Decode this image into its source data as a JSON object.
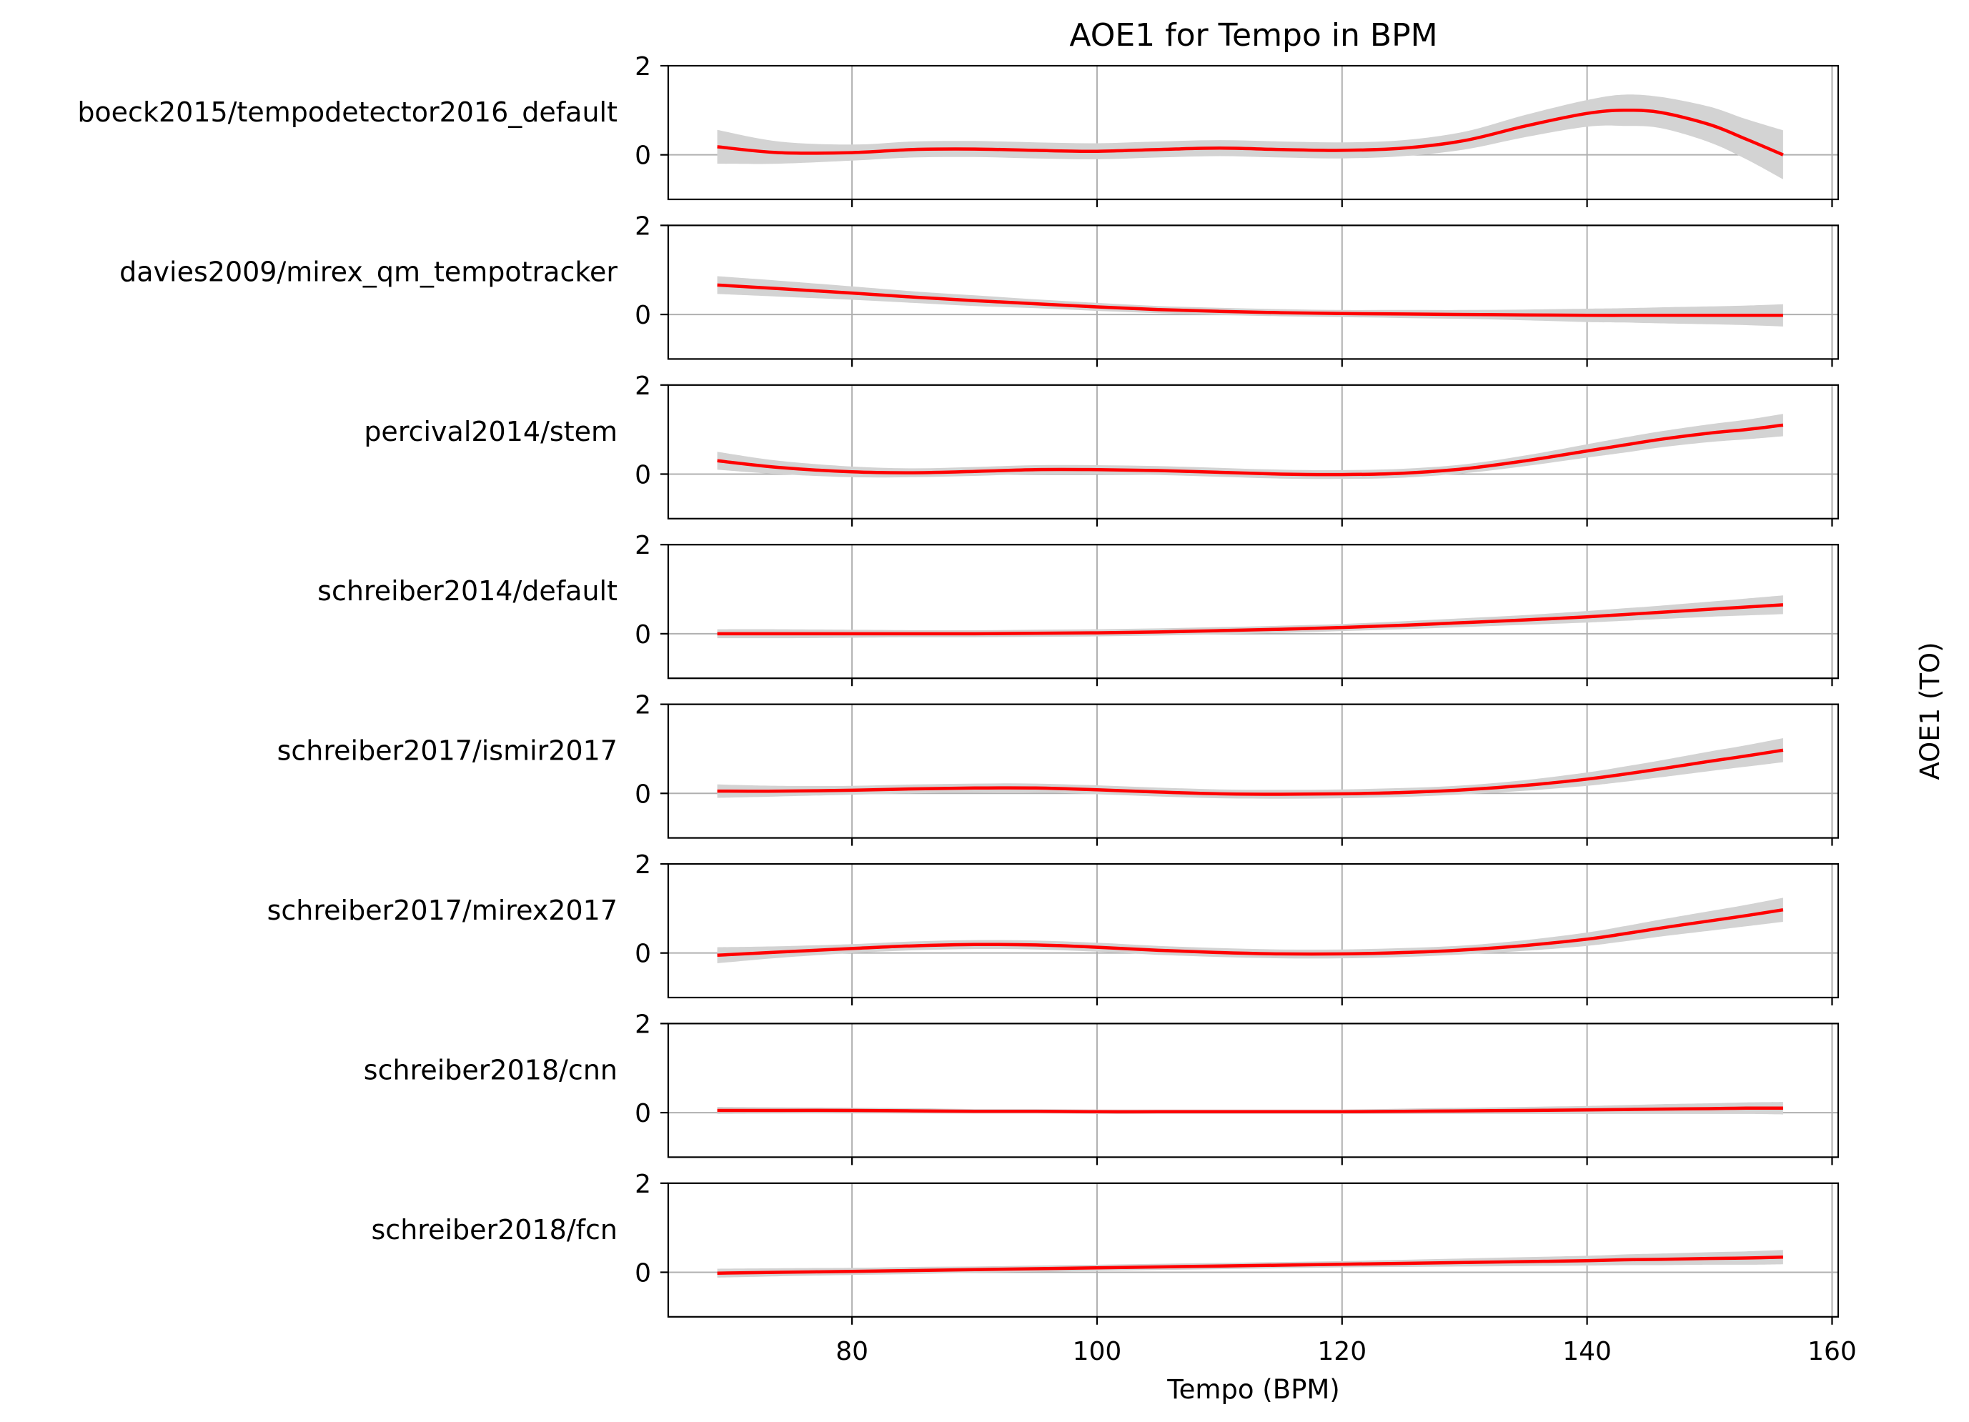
{
  "chart_data": {
    "type": "line",
    "title": "AOE1 for Tempo in BPM",
    "xlabel": "Tempo (BPM)",
    "ylabel": "AOE1 (TO)",
    "xlim": [
      65,
      160.5
    ],
    "ylim": [
      -1,
      2
    ],
    "xticks": [
      80,
      100,
      120,
      140,
      160
    ],
    "yticks": [
      0,
      2
    ],
    "grid": true,
    "line_color": "#ff0000",
    "band_color": "#d3d3d3",
    "grid_color": "#b0b0b0",
    "x": [
      69,
      74,
      80,
      85,
      90,
      95,
      100,
      105,
      110,
      115,
      120,
      125,
      130,
      135,
      140,
      143,
      146,
      150,
      153,
      156
    ],
    "series": [
      {
        "name": "boeck2015/tempodetector2016_default",
        "values": [
          0.18,
          0.05,
          0.05,
          0.12,
          0.13,
          0.1,
          0.08,
          0.12,
          0.15,
          0.12,
          0.1,
          0.15,
          0.32,
          0.65,
          0.93,
          1.0,
          0.95,
          0.68,
          0.35,
          0.0
        ],
        "band": [
          0.38,
          0.25,
          0.18,
          0.18,
          0.18,
          0.18,
          0.18,
          0.18,
          0.18,
          0.18,
          0.18,
          0.18,
          0.2,
          0.25,
          0.3,
          0.35,
          0.35,
          0.4,
          0.45,
          0.55
        ]
      },
      {
        "name": "davies2009/mirex_qm_tempotracker",
        "values": [
          0.66,
          0.58,
          0.48,
          0.39,
          0.31,
          0.24,
          0.17,
          0.11,
          0.07,
          0.04,
          0.02,
          0.01,
          0.0,
          -0.01,
          -0.02,
          -0.02,
          -0.02,
          -0.02,
          -0.02,
          -0.02
        ],
        "band": [
          0.2,
          0.18,
          0.15,
          0.13,
          0.12,
          0.1,
          0.09,
          0.08,
          0.08,
          0.08,
          0.08,
          0.09,
          0.1,
          0.12,
          0.15,
          0.16,
          0.18,
          0.2,
          0.22,
          0.25
        ]
      },
      {
        "name": "percival2014/stem",
        "values": [
          0.3,
          0.15,
          0.05,
          0.03,
          0.06,
          0.1,
          0.1,
          0.08,
          0.04,
          0.0,
          -0.01,
          0.02,
          0.12,
          0.3,
          0.52,
          0.65,
          0.78,
          0.92,
          1.0,
          1.1
        ],
        "band": [
          0.2,
          0.15,
          0.12,
          0.1,
          0.1,
          0.1,
          0.1,
          0.1,
          0.1,
          0.1,
          0.1,
          0.1,
          0.1,
          0.12,
          0.15,
          0.17,
          0.18,
          0.2,
          0.22,
          0.25
        ]
      },
      {
        "name": "schreiber2014/default",
        "values": [
          0.0,
          0.0,
          0.0,
          0.0,
          0.0,
          0.01,
          0.02,
          0.04,
          0.07,
          0.1,
          0.14,
          0.19,
          0.25,
          0.31,
          0.38,
          0.43,
          0.48,
          0.55,
          0.6,
          0.65
        ],
        "band": [
          0.1,
          0.1,
          0.09,
          0.08,
          0.08,
          0.08,
          0.08,
          0.08,
          0.08,
          0.08,
          0.08,
          0.09,
          0.1,
          0.11,
          0.13,
          0.14,
          0.15,
          0.17,
          0.19,
          0.21
        ]
      },
      {
        "name": "schreiber2017/ismir2017",
        "values": [
          0.05,
          0.05,
          0.07,
          0.1,
          0.12,
          0.12,
          0.08,
          0.03,
          -0.01,
          -0.02,
          -0.01,
          0.02,
          0.08,
          0.18,
          0.32,
          0.43,
          0.55,
          0.72,
          0.84,
          0.97
        ],
        "band": [
          0.15,
          0.12,
          0.1,
          0.1,
          0.1,
          0.1,
          0.1,
          0.1,
          0.1,
          0.1,
          0.1,
          0.1,
          0.1,
          0.12,
          0.15,
          0.17,
          0.19,
          0.22,
          0.24,
          0.27
        ]
      },
      {
        "name": "schreiber2017/mirex2017",
        "values": [
          -0.05,
          0.02,
          0.1,
          0.16,
          0.19,
          0.18,
          0.13,
          0.06,
          0.01,
          -0.02,
          -0.02,
          0.01,
          0.07,
          0.17,
          0.31,
          0.43,
          0.56,
          0.72,
          0.84,
          0.97
        ],
        "band": [
          0.18,
          0.13,
          0.1,
          0.1,
          0.1,
          0.1,
          0.1,
          0.1,
          0.1,
          0.1,
          0.1,
          0.1,
          0.1,
          0.12,
          0.15,
          0.17,
          0.19,
          0.22,
          0.24,
          0.27
        ]
      },
      {
        "name": "schreiber2018/cnn",
        "values": [
          0.05,
          0.05,
          0.05,
          0.04,
          0.03,
          0.03,
          0.02,
          0.02,
          0.02,
          0.02,
          0.02,
          0.03,
          0.04,
          0.05,
          0.06,
          0.07,
          0.08,
          0.09,
          0.1,
          0.1
        ],
        "band": [
          0.08,
          0.07,
          0.06,
          0.06,
          0.05,
          0.05,
          0.05,
          0.05,
          0.05,
          0.05,
          0.05,
          0.06,
          0.07,
          0.08,
          0.09,
          0.1,
          0.11,
          0.12,
          0.13,
          0.14
        ]
      },
      {
        "name": "schreiber2018/fcn",
        "values": [
          -0.02,
          0.0,
          0.02,
          0.04,
          0.06,
          0.08,
          0.1,
          0.12,
          0.14,
          0.16,
          0.18,
          0.2,
          0.22,
          0.24,
          0.26,
          0.28,
          0.29,
          0.31,
          0.32,
          0.34
        ],
        "band": [
          0.1,
          0.09,
          0.08,
          0.08,
          0.07,
          0.07,
          0.07,
          0.07,
          0.07,
          0.07,
          0.07,
          0.08,
          0.09,
          0.1,
          0.11,
          0.12,
          0.13,
          0.14,
          0.15,
          0.16
        ]
      }
    ]
  }
}
